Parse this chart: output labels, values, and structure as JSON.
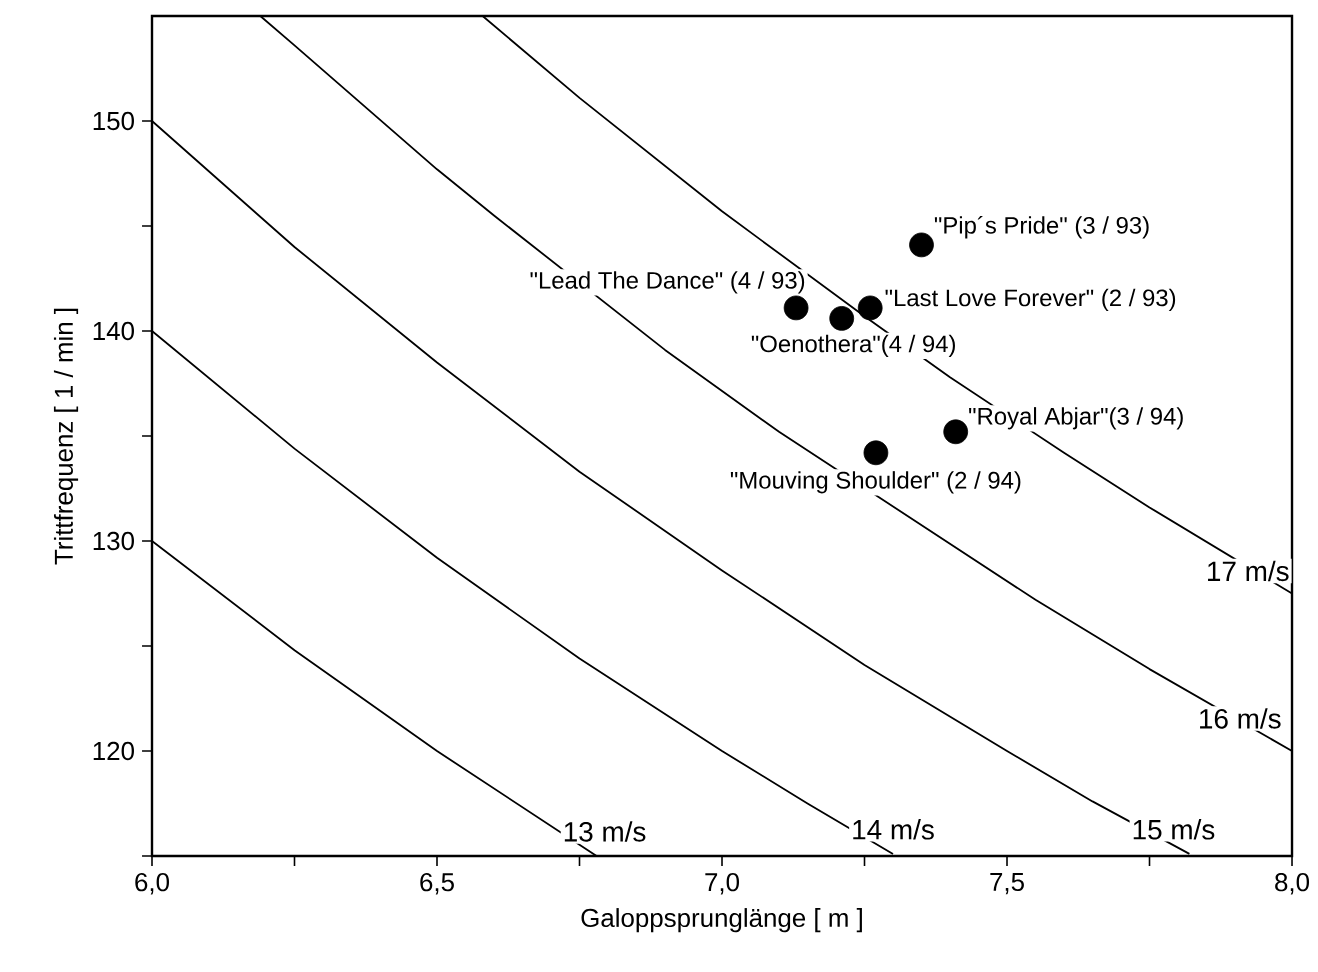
{
  "chart_data": {
    "type": "scatter",
    "xlabel": "Galoppsprunglänge [ m ]",
    "ylabel": "Trittfrequenz [ 1 / min ]",
    "xlim": [
      6,
      8
    ],
    "ylim": [
      115,
      155
    ],
    "xticks": [
      {
        "value": 6,
        "label": "6,0"
      },
      {
        "value": 6.25,
        "label": null
      },
      {
        "value": 6.5,
        "label": "6,5"
      },
      {
        "value": 6.75,
        "label": null
      },
      {
        "value": 7,
        "label": "7,0"
      },
      {
        "value": 7.25,
        "label": null
      },
      {
        "value": 7.5,
        "label": "7,5"
      },
      {
        "value": 7.75,
        "label": null
      },
      {
        "value": 8,
        "label": "8,0"
      }
    ],
    "yticks": [
      {
        "value": 115,
        "label": null
      },
      120,
      {
        "value": 125,
        "label": null
      },
      130,
      {
        "value": 135,
        "label": null
      },
      140,
      {
        "value": 145,
        "label": null
      },
      150
    ],
    "grid": false,
    "series": [
      {
        "type": "line",
        "name": "13 m/s",
        "color": "#000000",
        "marker": "none",
        "line_style": "solid",
        "x": [
          6.0,
          6.25,
          6.5,
          6.78
        ],
        "values": [
          130,
          124.8,
          120.0,
          115.0
        ]
      },
      {
        "type": "line",
        "name": "14 m/s",
        "color": "#000000",
        "marker": "none",
        "line_style": "solid",
        "x": [
          6.0,
          6.25,
          6.5,
          6.75,
          7.0,
          7.15,
          7.3
        ],
        "values": [
          140,
          134.4,
          129.2,
          124.4,
          120.0,
          117.5,
          115.1
        ]
      },
      {
        "type": "line",
        "name": "15 m/s",
        "color": "#000000",
        "marker": "none",
        "line_style": "solid",
        "x": [
          6.0,
          6.25,
          6.5,
          6.75,
          7.0,
          7.25,
          7.5,
          7.65,
          7.82
        ],
        "values": [
          150,
          144.0,
          138.5,
          133.3,
          128.6,
          124.1,
          120.0,
          117.6,
          115.1
        ]
      },
      {
        "type": "line",
        "name": "16 m/s",
        "color": "#000000",
        "marker": "none",
        "line_style": "solid",
        "x": [
          6.19,
          6.25,
          6.5,
          6.6,
          6.9,
          7.1,
          7.55,
          7.75,
          8.0
        ],
        "values": [
          155.0,
          153.6,
          147.7,
          145.5,
          139.1,
          135.2,
          127.2,
          123.9,
          120.0
        ]
      },
      {
        "type": "line",
        "name": "17 m/s",
        "color": "#000000",
        "marker": "none",
        "line_style": "solid",
        "x": [
          6.58,
          6.75,
          7.0,
          7.25,
          7.4,
          7.6,
          7.75,
          8.0
        ],
        "values": [
          155.0,
          151.1,
          145.7,
          140.7,
          137.8,
          134.2,
          131.6,
          127.5
        ]
      },
      {
        "type": "scatter",
        "color": "#000000",
        "marker": "circle",
        "x": [
          7.35,
          7.13,
          7.21,
          7.26,
          7.41,
          7.27
        ],
        "values": [
          144.1,
          141.1,
          140.6,
          141.1,
          135.2,
          134.2
        ]
      }
    ],
    "annotations": [
      {
        "text": "\"Pip´s Pride\" (3 / 93)",
        "x": 7.35,
        "y": 144.1
      },
      {
        "text": "\"Lead The Dance\" (4 / 93)",
        "x": 7.13,
        "y": 141.1
      },
      {
        "text": "\"Oenothera\"(4 / 94)",
        "x": 7.21,
        "y": 140.6
      },
      {
        "text": "\"Last Love Forever\" (2 / 93)",
        "x": 7.26,
        "y": 141.1
      },
      {
        "text": "\"Royal Abjar\"(3 / 94)",
        "x": 7.41,
        "y": 135.2
      },
      {
        "text": "\"Mouving Shoulder\" (2 / 94)",
        "x": 7.27,
        "y": 134.2
      }
    ]
  }
}
